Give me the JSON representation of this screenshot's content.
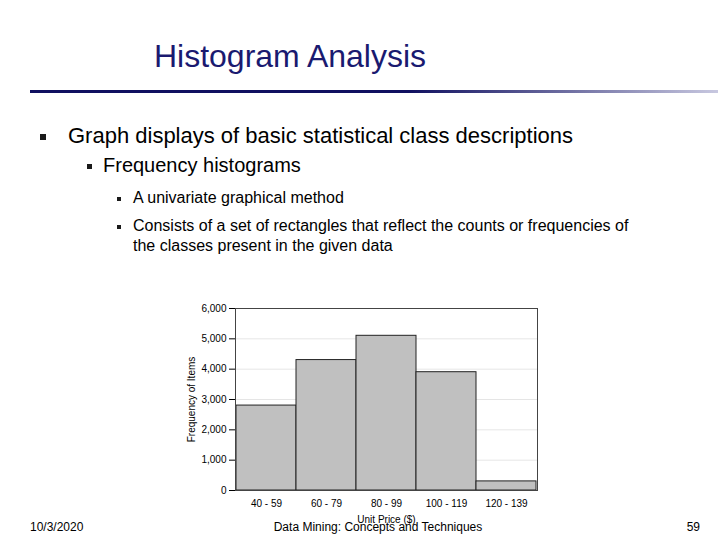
{
  "title": "Histogram Analysis",
  "bullets": [
    {
      "text": "Graph displays of basic statistical class descriptions",
      "children": [
        {
          "text": "Frequency histograms",
          "children": [
            {
              "text": "A univariate graphical method"
            },
            {
              "text": "Consists of a set of rectangles that reflect the counts or frequencies of the classes present in the given data"
            }
          ]
        }
      ]
    }
  ],
  "footer": {
    "date": "10/3/2020",
    "text": "Data Mining: Concepts and Techniques",
    "page": "59"
  },
  "chart_data": {
    "type": "bar",
    "x_label": "Unit Price ($)",
    "y_label": "Frequency of Items",
    "categories": [
      "40 - 59",
      "60 - 79",
      "80 - 99",
      "100 - 119",
      "120 - 139"
    ],
    "values": [
      2800,
      4300,
      5100,
      3900,
      300
    ],
    "color": "#c0c0c0",
    "ylim": [
      0,
      6000
    ],
    "yticks": [
      0,
      1000,
      2000,
      3000,
      4000,
      5000,
      6000
    ],
    "grid": true
  }
}
